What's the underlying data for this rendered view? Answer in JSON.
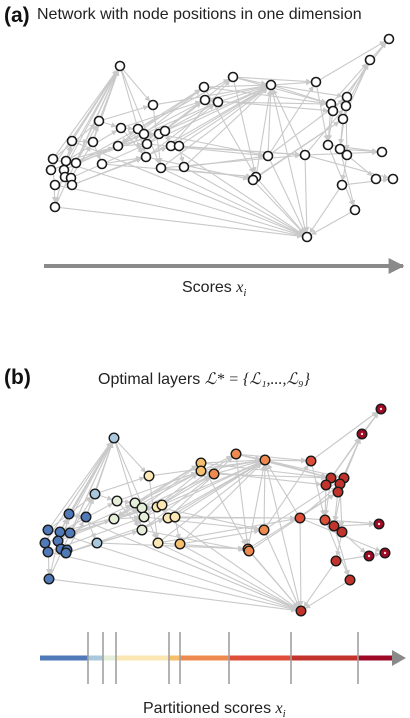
{
  "panel_a": {
    "label": "(a)",
    "title": "Network with node positions in one dimension",
    "axis_label_text": "Scores ",
    "axis_label_var": "x",
    "axis_label_sub": "i"
  },
  "panel_b": {
    "label": "(b)",
    "title_text": "Optimal layers ",
    "title_math": "ℒ* = {ℒ₁,...,ℒ₉}",
    "axis_label_text": "Partitioned scores ",
    "axis_label_var": "x",
    "axis_label_sub": "i"
  },
  "colors": {
    "edge": "#c9c9c9",
    "axis": "#8a8a8a",
    "layer_palette": [
      "#4f79b7",
      "#a9c8de",
      "#e5eed9",
      "#fbe7b3",
      "#f6bf6e",
      "#ef8a4e",
      "#dd4d37",
      "#c2332b",
      "#9e0a26"
    ]
  }
}
